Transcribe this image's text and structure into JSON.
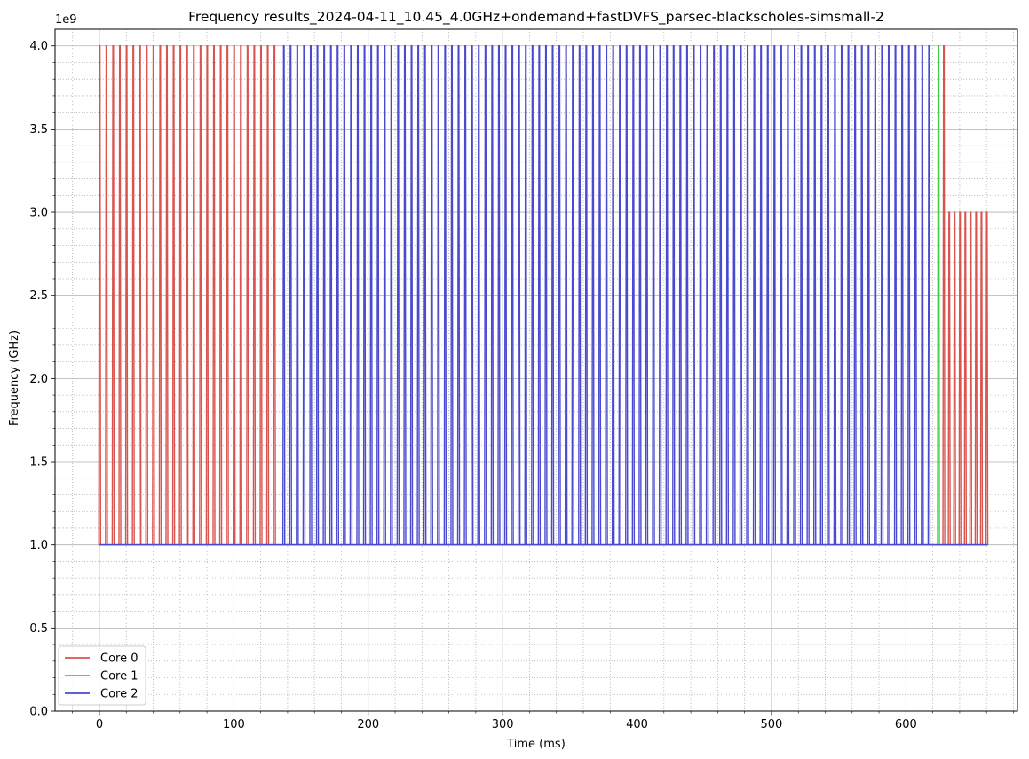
{
  "chart_data": {
    "type": "line",
    "title": "Frequency results_2024-04-11_10.45_4.0GHz+ondemand+fastDVFS_parsec-blackscholes-simsmall-2",
    "xlabel": "Time (ms)",
    "ylabel": "Frequency (GHz)",
    "y_offset_label": "1e9",
    "xlim": [
      -33,
      683
    ],
    "ylim": [
      0,
      4100000000
    ],
    "x_ticks": [
      0,
      100,
      200,
      300,
      400,
      500,
      600
    ],
    "x_tick_labels": [
      "0",
      "100",
      "200",
      "300",
      "400",
      "500",
      "600"
    ],
    "y_ticks": [
      0,
      500000000,
      1000000000,
      1500000000,
      2000000000,
      2500000000,
      3000000000,
      3500000000,
      4000000000
    ],
    "y_tick_labels": [
      "0.0",
      "0.5",
      "1.0",
      "1.5",
      "2.0",
      "2.5",
      "3.0",
      "3.5",
      "4.0"
    ],
    "grid": "major solid, minor dotted",
    "legend_position": "lower-left",
    "series": [
      {
        "name": "Core 0",
        "color": "#d9534f",
        "description_pattern": "spikes",
        "baseline": 1000000000,
        "segments": [
          {
            "start": 0,
            "end": 130,
            "step": 5.0,
            "peak": 4000000000
          },
          {
            "start": 628,
            "end": 628,
            "step": 1,
            "peak": 4000000000
          },
          {
            "start": 632,
            "end": 660,
            "step": 4.0,
            "peak": 3000000000
          }
        ],
        "extra_points": [
          [
            0,
            3200000000
          ]
        ],
        "x_end": 661
      },
      {
        "name": "Core 1",
        "color": "#3fce3f",
        "baseline": 1000000000,
        "segments": [
          {
            "start": 624,
            "end": 624,
            "step": 1,
            "peak": 4000000000
          }
        ],
        "x_end": 661
      },
      {
        "name": "Core 2",
        "color": "#4a4ad0",
        "baseline": 1000000000,
        "segments": [
          {
            "start": 137,
            "end": 618,
            "step": 5.0,
            "peak": 4000000000
          }
        ],
        "x_end": 661
      }
    ]
  }
}
